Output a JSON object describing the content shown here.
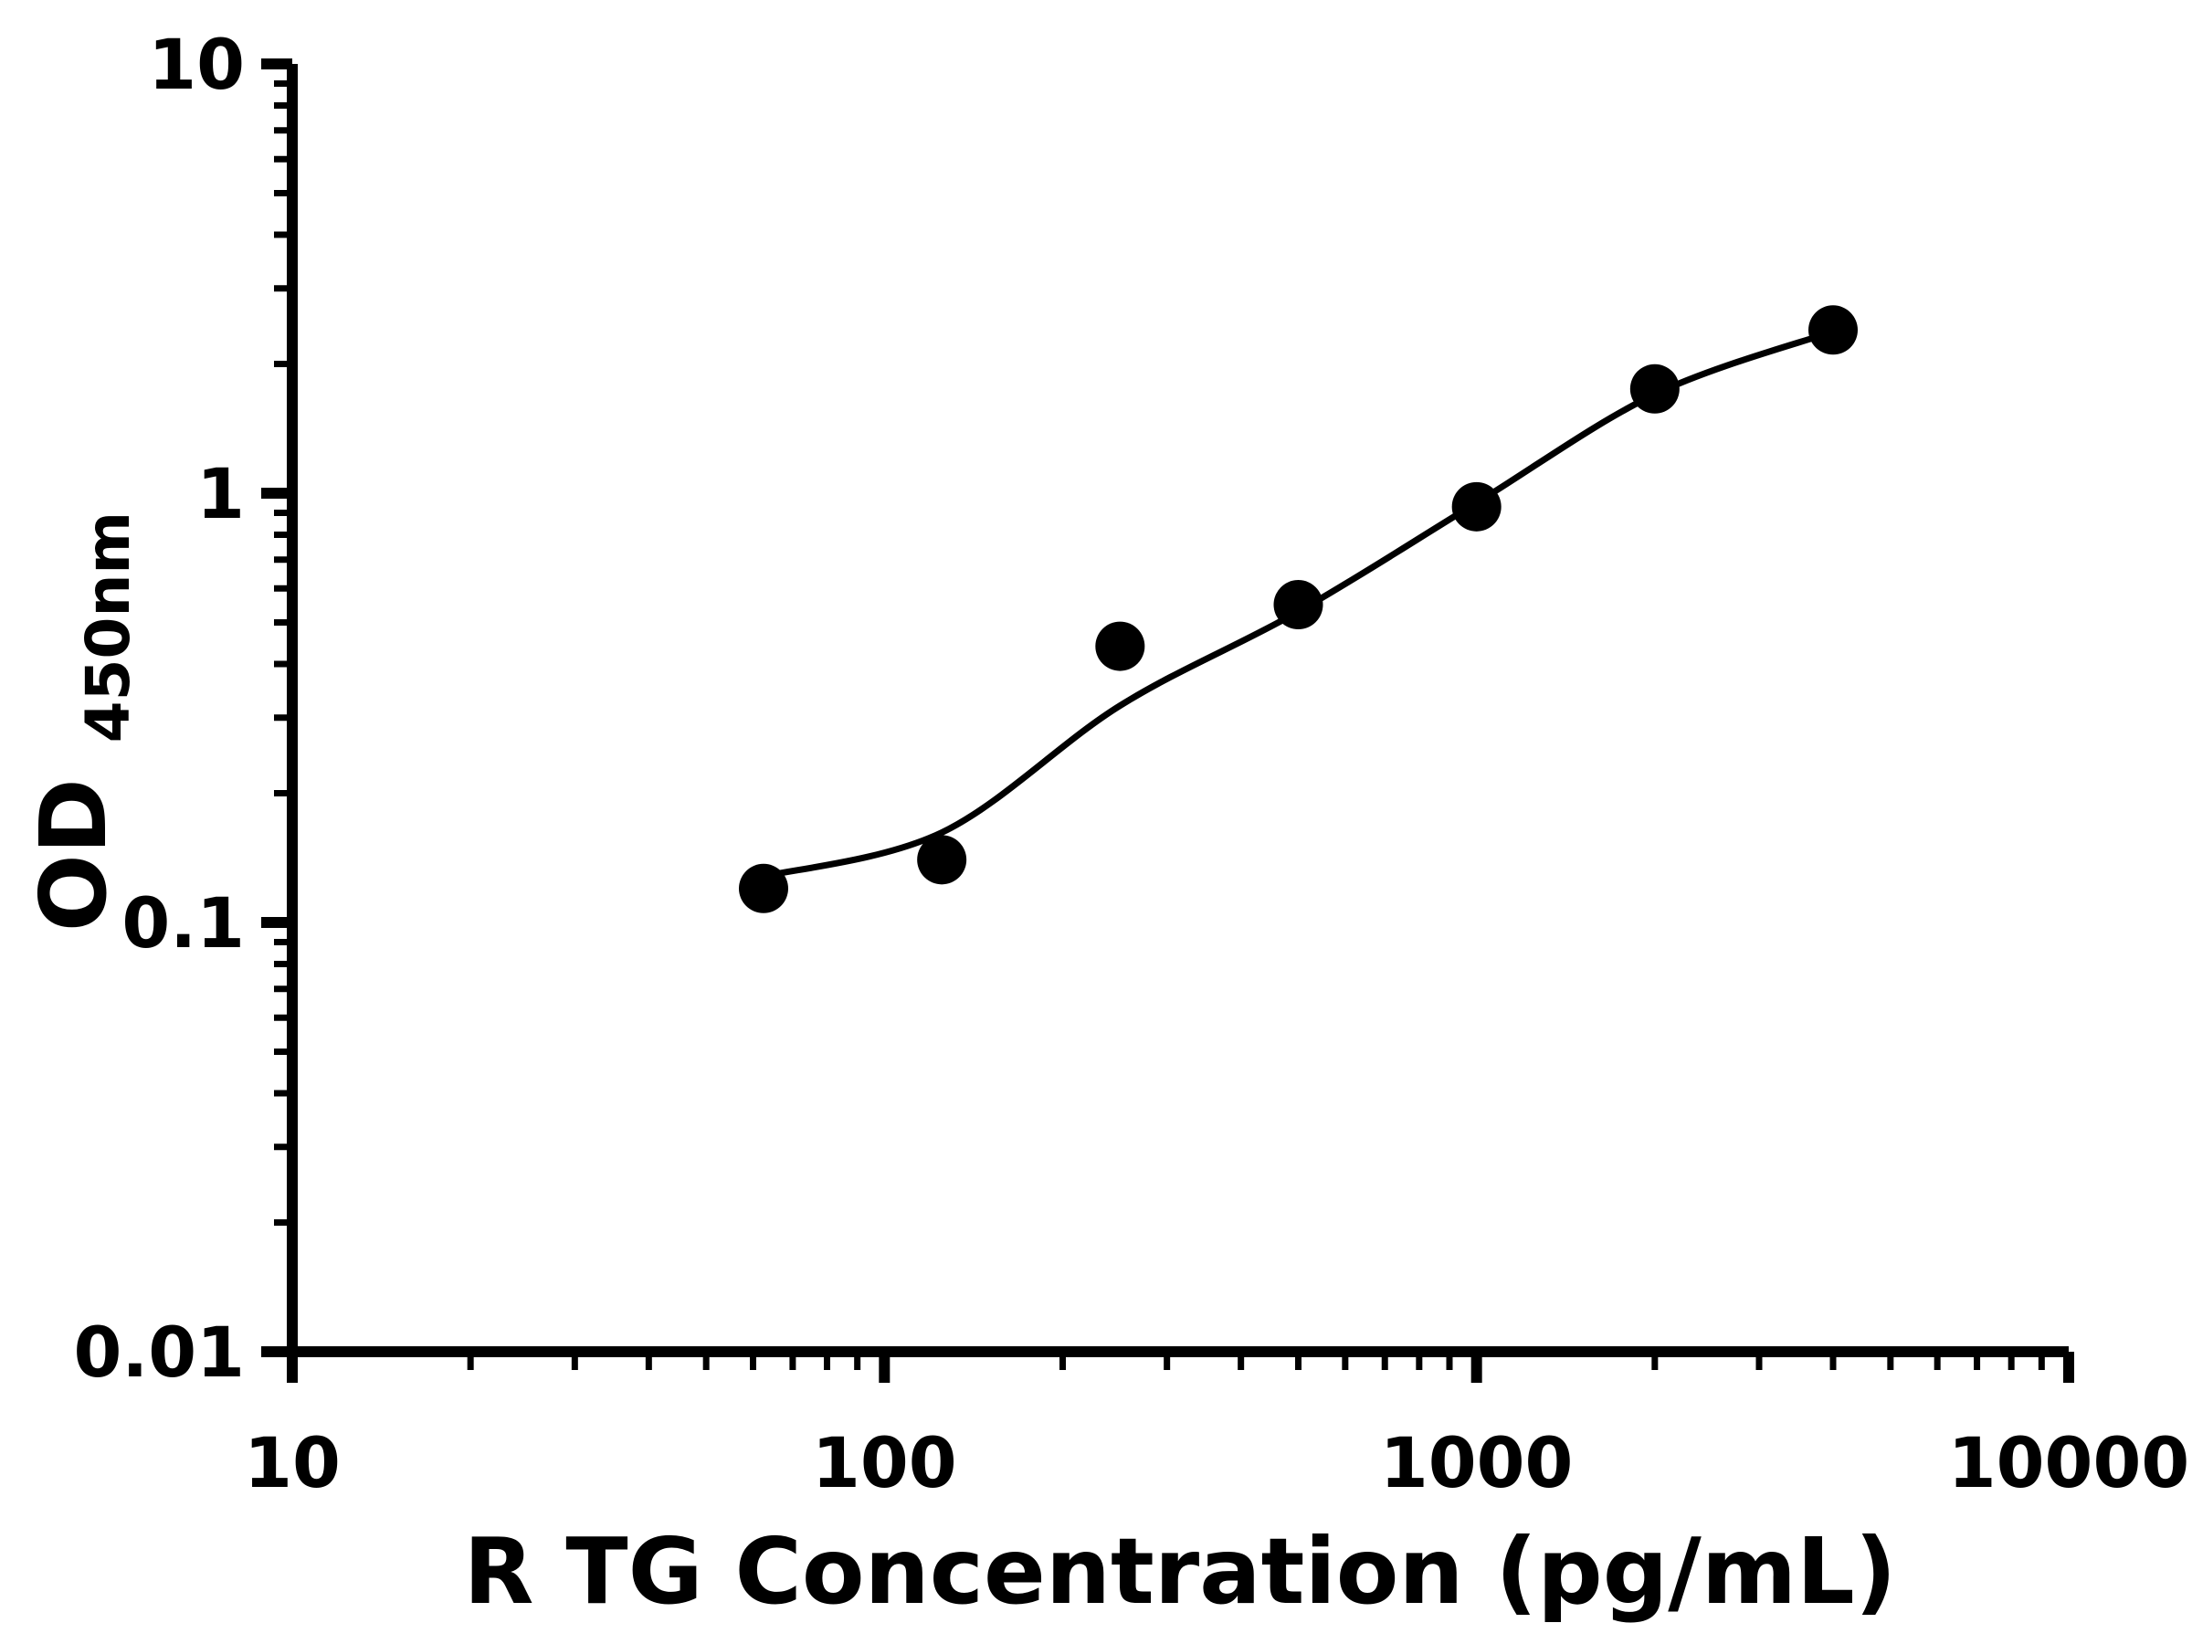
{
  "chart_data": {
    "type": "scatter",
    "title": "",
    "xlabel": "R TG Concentration (pg/mL)",
    "ylabel_main": "OD",
    "ylabel_sub": "450nm",
    "x_scale": "log",
    "y_scale": "log",
    "xlim": [
      10,
      10000
    ],
    "ylim": [
      0.01,
      10
    ],
    "x_ticks": [
      10,
      100,
      1000,
      10000
    ],
    "x_tick_labels": [
      "10",
      "100",
      "1000",
      "10000"
    ],
    "y_ticks": [
      0.01,
      0.1,
      1,
      10
    ],
    "y_tick_labels": [
      "0.01",
      "0.1",
      "1",
      "10"
    ],
    "grid": false,
    "legend": "none",
    "background": "#ffffff",
    "axis_color": "#000000",
    "series_color": "#000000",
    "points": [
      {
        "x": 62.5,
        "y": 0.12
      },
      {
        "x": 125,
        "y": 0.14
      },
      {
        "x": 250,
        "y": 0.44
      },
      {
        "x": 500,
        "y": 0.55
      },
      {
        "x": 1000,
        "y": 0.93
      },
      {
        "x": 2000,
        "y": 1.75
      },
      {
        "x": 4000,
        "y": 2.4
      }
    ],
    "fit_curve": [
      {
        "x": 62.5,
        "y": 0.128
      },
      {
        "x": 125,
        "y": 0.162
      },
      {
        "x": 250,
        "y": 0.32
      },
      {
        "x": 500,
        "y": 0.53
      },
      {
        "x": 1000,
        "y": 0.95
      },
      {
        "x": 2000,
        "y": 1.7
      },
      {
        "x": 4000,
        "y": 2.38
      }
    ]
  }
}
